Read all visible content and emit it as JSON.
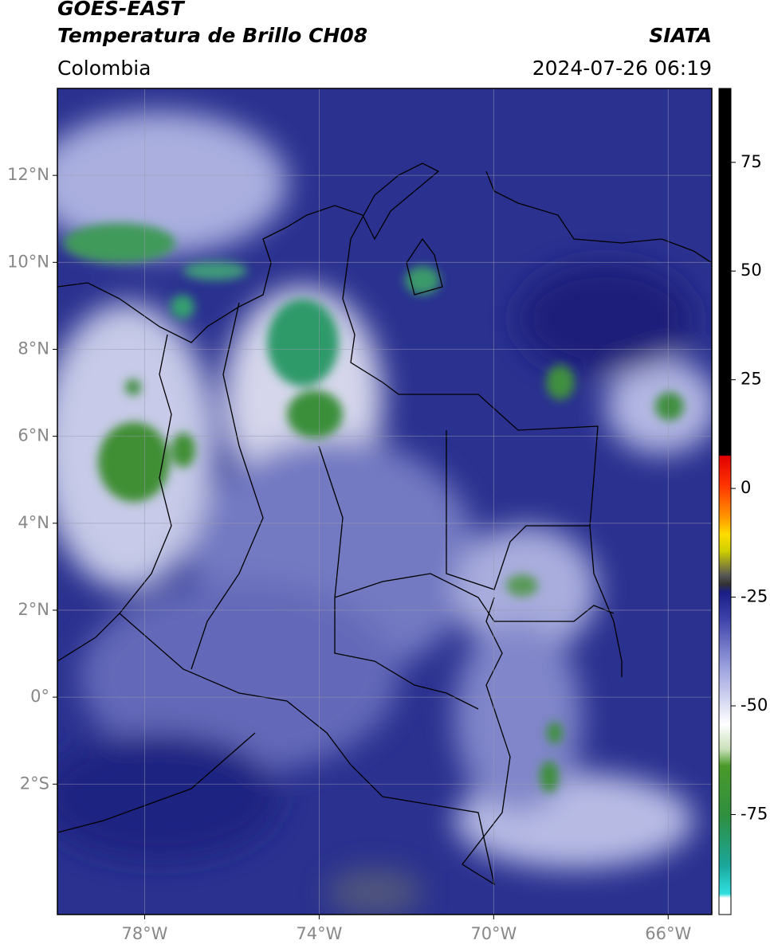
{
  "header": {
    "satellite": "GOES-EAST",
    "product": "Temperatura de Brillo CH08",
    "agency": "SIATA",
    "region": "Colombia",
    "datetime": "2024-07-26 06:19"
  },
  "map": {
    "xlim": [
      -80,
      -65
    ],
    "ylim": [
      -5,
      14
    ],
    "xticks": [
      {
        "value": -78,
        "label": "78°W"
      },
      {
        "value": -74,
        "label": "74°W"
      },
      {
        "value": -70,
        "label": "70°W"
      },
      {
        "value": -66,
        "label": "66°W"
      }
    ],
    "yticks": [
      {
        "value": 12,
        "label": "12°N"
      },
      {
        "value": 10,
        "label": "10°N"
      },
      {
        "value": 8,
        "label": "8°N"
      },
      {
        "value": 6,
        "label": "6°N"
      },
      {
        "value": 4,
        "label": "4°N"
      },
      {
        "value": 2,
        "label": "2°N"
      },
      {
        "value": 0,
        "label": "0°"
      },
      {
        "value": -2,
        "label": "2°S"
      }
    ],
    "grid": true
  },
  "colorbar": {
    "ylim": [
      -98,
      92
    ],
    "yticks": [
      75,
      50,
      25,
      0,
      -25,
      -50,
      -75
    ]
  }
}
